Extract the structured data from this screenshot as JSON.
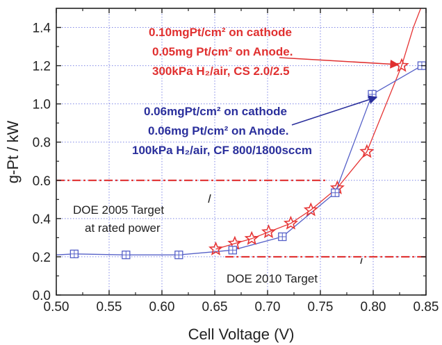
{
  "chart_data": {
    "type": "line",
    "xlabel": "Cell Voltage (V)",
    "ylabel": "g-Pt / kW",
    "xlim": [
      0.5,
      0.85
    ],
    "ylim": [
      0.0,
      1.5
    ],
    "x_ticks": [
      "0.50",
      "0.55",
      "0.60",
      "0.65",
      "0.70",
      "0.75",
      "0.80",
      "0.85"
    ],
    "y_ticks": [
      "0.0",
      "0.2",
      "0.4",
      "0.6",
      "0.8",
      "1.0",
      "1.2",
      "1.4"
    ],
    "grid": true,
    "series": [
      {
        "color": "#e63535",
        "marker": "star",
        "x": [
          0.651,
          0.669,
          0.685,
          0.701,
          0.722,
          0.741,
          0.766,
          0.794,
          0.827,
          0.838,
          0.845
        ],
        "y": [
          0.24,
          0.27,
          0.295,
          0.33,
          0.375,
          0.445,
          0.56,
          0.75,
          1.2,
          1.4,
          1.5
        ],
        "markers": [
          true,
          true,
          true,
          true,
          true,
          true,
          true,
          true,
          true,
          false,
          false
        ]
      },
      {
        "color": "#5560c8",
        "marker": "square-plus",
        "x": [
          0.5,
          0.517,
          0.566,
          0.616,
          0.667,
          0.714,
          0.764,
          0.799,
          0.846
        ],
        "y": [
          0.21,
          0.215,
          0.21,
          0.21,
          0.235,
          0.305,
          0.535,
          1.05,
          1.2
        ],
        "markers": [
          false,
          true,
          true,
          true,
          true,
          true,
          true,
          true,
          true
        ]
      }
    ],
    "reference_lines": [
      {
        "y": 0.6,
        "x_range": [
          0.5,
          0.755
        ],
        "color": "#e03030"
      },
      {
        "y": 0.2,
        "x_range": [
          0.66,
          0.85
        ],
        "color": "#e03030"
      }
    ],
    "annotations": {
      "red_block": {
        "line1": "0.10mgPt/cm² on cathode",
        "line2": "0.05mg Pt/cm² on Anode.",
        "line3": "300kPa H₂/air, CS 2.0/2.5",
        "color": "#e03030",
        "arrow_to": {
          "x": 0.827,
          "y": 1.2
        }
      },
      "blue_block": {
        "line1": "0.06mgPt/cm² on cathode",
        "line2": "0.06mg Pt/cm² on Anode.",
        "line3": "100kPa H₂/air, CF 800/1800sccm",
        "color": "#2a2f9c",
        "arrow_to": {
          "x": 0.799,
          "y": 1.04
        }
      },
      "target_2005": {
        "line1": "DOE 2005 Target",
        "line2": "at rated power"
      },
      "target_2010": {
        "line1": "DOE 2010 Target"
      }
    }
  }
}
